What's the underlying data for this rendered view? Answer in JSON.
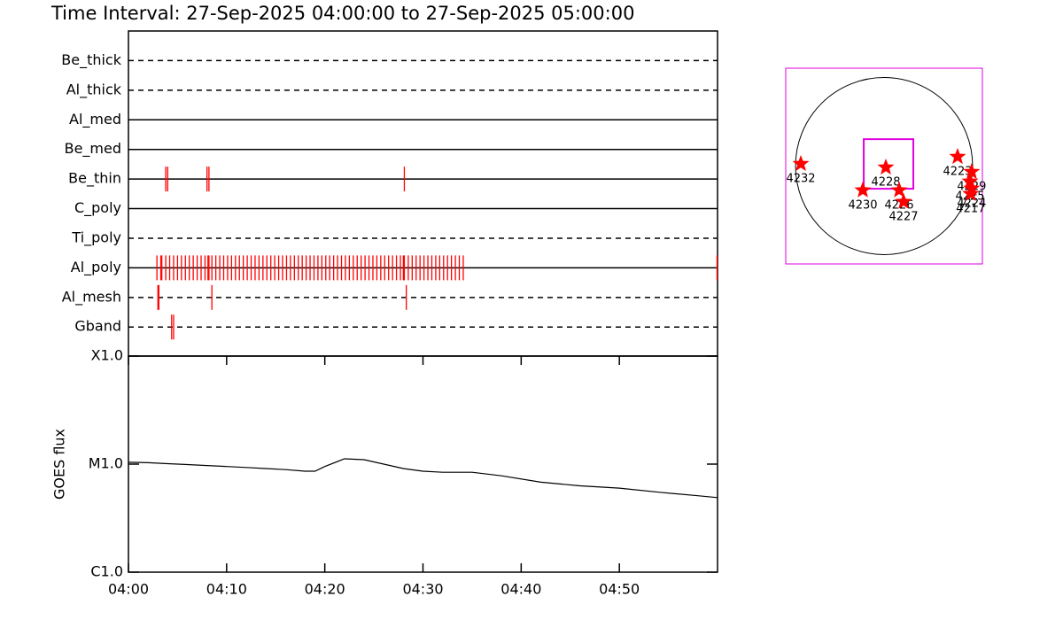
{
  "chart_data": [
    {
      "type": "event",
      "title": "Time Interval: 27-Sep-2025 04:00:00 to 27-Sep-2025 05:00:00",
      "xlim": [
        0,
        60
      ],
      "color": "#ff0000",
      "rows": [
        {
          "name": "Be_thick",
          "dashed": true,
          "times": []
        },
        {
          "name": "Al_thick",
          "dashed": true,
          "times": []
        },
        {
          "name": "Al_med",
          "dashed": false,
          "times": []
        },
        {
          "name": "Be_med",
          "dashed": false,
          "times": []
        },
        {
          "name": "Be_thin",
          "dashed": false,
          "times": [
            3.8,
            4.0,
            8.0,
            8.2,
            28.1
          ]
        },
        {
          "name": "C_poly",
          "dashed": false,
          "times": []
        },
        {
          "name": "Ti_poly",
          "dashed": true,
          "times": []
        },
        {
          "name": "Al_poly",
          "dashed": false,
          "times": [
            2.9,
            3.3,
            3.4,
            3.8,
            4.2,
            4.6,
            5.0,
            5.4,
            5.8,
            6.2,
            6.6,
            7.0,
            7.4,
            7.8,
            8.1,
            8.2,
            8.5,
            8.9,
            9.3,
            9.7,
            10.1,
            10.5,
            10.9,
            11.3,
            11.7,
            12.1,
            12.5,
            12.9,
            13.3,
            13.7,
            14.1,
            14.5,
            14.9,
            15.3,
            15.7,
            16.1,
            16.5,
            16.9,
            17.3,
            17.7,
            18.1,
            18.5,
            18.9,
            19.3,
            19.7,
            20.1,
            20.5,
            20.9,
            21.3,
            21.7,
            22.1,
            22.5,
            22.9,
            23.3,
            23.7,
            24.1,
            24.5,
            24.9,
            25.3,
            25.7,
            26.1,
            26.5,
            26.9,
            27.3,
            27.7,
            28.0,
            28.1,
            28.5,
            28.9,
            29.3,
            29.7,
            30.1,
            30.5,
            30.9,
            31.3,
            31.7,
            32.1,
            32.5,
            32.9,
            33.3,
            33.7,
            34.1,
            59.95
          ]
        },
        {
          "name": "Al_mesh",
          "dashed": true,
          "times": [
            3.0,
            3.1,
            8.5,
            28.3
          ]
        },
        {
          "name": "Gband",
          "dashed": true,
          "times": [
            4.4,
            4.6
          ]
        }
      ]
    },
    {
      "type": "line",
      "ylabel": "GOES flux",
      "log_scale": true,
      "xlim": [
        0,
        60
      ],
      "ylim": [
        1e-06,
        0.0001
      ],
      "xticks": [
        {
          "value": 0,
          "label": "04:00"
        },
        {
          "value": 10,
          "label": "04:10"
        },
        {
          "value": 20,
          "label": "04:20"
        },
        {
          "value": 30,
          "label": "04:30"
        },
        {
          "value": 40,
          "label": "04:40"
        },
        {
          "value": 50,
          "label": "04:50"
        }
      ],
      "yticks": [
        {
          "value": 1e-06,
          "label": "C1.0"
        },
        {
          "value": 1e-05,
          "label": "M1.0"
        },
        {
          "value": 0.0001,
          "label": "X1.0"
        }
      ],
      "x": [
        0,
        2,
        4,
        6,
        8,
        10,
        12,
        14,
        16,
        18,
        19,
        20,
        22,
        24,
        26,
        28,
        30,
        32,
        35,
        38,
        42,
        46,
        50,
        54,
        58,
        60
      ],
      "values": [
        1.04e-05,
        1.03e-05,
        1.01e-05,
        9.9e-06,
        9.7e-06,
        9.5e-06,
        9.3e-06,
        9.1e-06,
        8.9e-06,
        8.6e-06,
        8.6e-06,
        9.5e-06,
        1.12e-05,
        1.1e-05,
        1e-05,
        9.1e-06,
        8.6e-06,
        8.4e-06,
        8.4e-06,
        7.8e-06,
        6.8e-06,
        6.3e-06,
        6e-06,
        5.5e-06,
        5.1e-06,
        4.9e-06
      ],
      "color": "#000000"
    },
    {
      "type": "disk",
      "xlim": [
        -1055,
        1055
      ],
      "ylim": [
        -1055,
        1055
      ],
      "disk_radius": 950,
      "color": "#ff0000",
      "frame_color": "#e000e0",
      "fov": {
        "x": 48,
        "y": 24,
        "width": 532,
        "height": 532
      },
      "regions": [
        {
          "label": "4232",
          "x": -893,
          "y": 24
        },
        {
          "label": "4228",
          "x": 19,
          "y": -14
        },
        {
          "label": "4230",
          "x": -228,
          "y": -261
        },
        {
          "label": "4226",
          "x": 162,
          "y": -261
        },
        {
          "label": "4227",
          "x": 209,
          "y": -385
        },
        {
          "label": "4223",
          "x": 789,
          "y": 100
        },
        {
          "label": "4229",
          "x": 940,
          "y": -62
        },
        {
          "label": "4225",
          "x": 922,
          "y": -166
        },
        {
          "label": "4224",
          "x": 940,
          "y": -242
        },
        {
          "label": "4217",
          "x": 930,
          "y": -300
        }
      ]
    }
  ]
}
